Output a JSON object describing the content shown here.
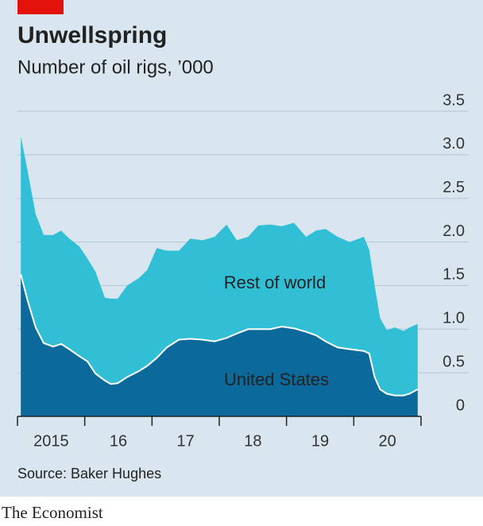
{
  "chart_data": {
    "type": "stacked-area",
    "title": "Unwellspring",
    "subtitle": "Number of oil rigs, ’000",
    "source": "Source: Baker Hughes",
    "brand": "The Economist",
    "x": [
      2015.05,
      2015.15,
      2015.27,
      2015.39,
      2015.53,
      2015.65,
      2015.77,
      2015.92,
      2016.04,
      2016.16,
      2016.3,
      2016.39,
      2016.49,
      2016.63,
      2016.81,
      2016.93,
      2017.07,
      2017.22,
      2017.4,
      2017.57,
      2017.75,
      2017.93,
      2018.11,
      2018.26,
      2018.43,
      2018.58,
      2018.76,
      2018.93,
      2019.11,
      2019.29,
      2019.44,
      2019.58,
      2019.76,
      2019.94,
      2020.15,
      2020.23,
      2020.31,
      2020.39,
      2020.49,
      2020.61,
      2020.74,
      2020.83,
      2020.95
    ],
    "series": [
      {
        "name": "United States",
        "color": "#0b6a9b",
        "values": [
          1.63,
          1.33,
          1.02,
          0.84,
          0.8,
          0.83,
          0.77,
          0.69,
          0.63,
          0.49,
          0.41,
          0.37,
          0.38,
          0.45,
          0.52,
          0.58,
          0.67,
          0.79,
          0.88,
          0.89,
          0.88,
          0.86,
          0.9,
          0.95,
          1.0,
          1.0,
          1.0,
          1.03,
          1.01,
          0.97,
          0.93,
          0.86,
          0.79,
          0.77,
          0.75,
          0.72,
          0.45,
          0.31,
          0.26,
          0.24,
          0.24,
          0.26,
          0.31
        ]
      },
      {
        "name": "Rest of world",
        "color": "#31bfd5",
        "values": [
          1.58,
          1.49,
          1.3,
          1.24,
          1.28,
          1.3,
          1.27,
          1.26,
          1.18,
          1.17,
          0.95,
          0.98,
          0.97,
          1.05,
          1.07,
          1.1,
          1.26,
          1.11,
          1.02,
          1.15,
          1.14,
          1.2,
          1.3,
          1.07,
          1.06,
          1.19,
          1.2,
          1.15,
          1.21,
          1.09,
          1.2,
          1.29,
          1.27,
          1.23,
          1.31,
          1.19,
          1.05,
          0.82,
          0.73,
          0.78,
          0.74,
          0.76,
          0.75
        ]
      }
    ],
    "xlim": [
      2015,
      2021
    ],
    "xticks": [
      {
        "value": 2015,
        "label": "2015"
      },
      {
        "value": 2016,
        "label": "16"
      },
      {
        "value": 2017,
        "label": "17"
      },
      {
        "value": 2018,
        "label": "18"
      },
      {
        "value": 2019,
        "label": "19"
      },
      {
        "value": 2020,
        "label": "20"
      }
    ],
    "ylim": [
      0,
      3.5
    ],
    "yticks": [
      0,
      0.5,
      {
        "value": 1,
        "label": "1.0"
      },
      1.5,
      {
        "value": 2,
        "label": "2.0"
      },
      2.5,
      {
        "value": 3,
        "label": "3.0"
      },
      3.5
    ],
    "grid": true
  }
}
